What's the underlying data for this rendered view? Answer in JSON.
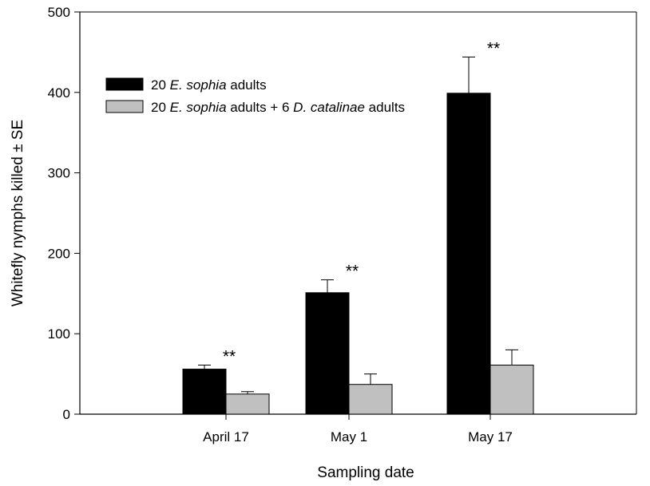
{
  "chart_data": {
    "type": "bar",
    "xlabel": "Sampling date",
    "ylabel": "Whitefly nymphs killed ± SE",
    "categories": [
      "April 17",
      "May 1",
      "May 17"
    ],
    "ylim": [
      0,
      500
    ],
    "yticks": [
      0,
      100,
      200,
      300,
      400,
      500
    ],
    "grid": false,
    "legend_position": "upper-left",
    "series": [
      {
        "name_parts": [
          {
            "text": "20 ",
            "italic": false
          },
          {
            "text": "E. sophia",
            "italic": true
          },
          {
            "text": " adults",
            "italic": false
          }
        ],
        "color": "#000000",
        "values": [
          56,
          151,
          399
        ],
        "errors": [
          5,
          16,
          45
        ]
      },
      {
        "name_parts": [
          {
            "text": "20 ",
            "italic": false
          },
          {
            "text": "E. sophia",
            "italic": true
          },
          {
            "text": " adults + 6 ",
            "italic": false
          },
          {
            "text": "D. catalinae",
            "italic": true
          },
          {
            "text": " adults",
            "italic": false
          }
        ],
        "color": "#c0c0c0",
        "values": [
          25,
          37,
          61
        ],
        "errors": [
          3,
          13,
          19
        ]
      }
    ],
    "annotations": [
      "**",
      "**",
      "**"
    ]
  }
}
